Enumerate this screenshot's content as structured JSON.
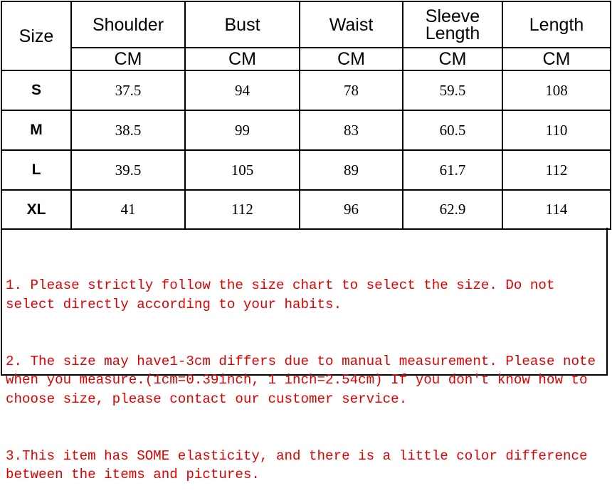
{
  "table": {
    "size_header": "Size",
    "columns": [
      {
        "label": "Shoulder",
        "unit": "CM"
      },
      {
        "label": "Bust",
        "unit": "CM"
      },
      {
        "label": "Waist",
        "unit": "CM"
      },
      {
        "label": "Sleeve Length",
        "unit": "CM"
      },
      {
        "label": "Length",
        "unit": "CM"
      }
    ],
    "rows": [
      {
        "size": "S",
        "values": [
          "37.5",
          "94",
          "78",
          "59.5",
          "108"
        ]
      },
      {
        "size": "M",
        "values": [
          "38.5",
          "99",
          "83",
          "60.5",
          "110"
        ]
      },
      {
        "size": "L",
        "values": [
          "39.5",
          "105",
          "89",
          "61.7",
          "112"
        ]
      },
      {
        "size": "XL",
        "values": [
          "41",
          "112",
          "96",
          "62.9",
          "114"
        ]
      }
    ]
  },
  "notes": [
    "1. Please strictly follow the size chart to select the size. Do not select directly according to your habits.",
    "2. The size may have1-3cm differs due to manual measurement. Please note when you measure.(1cm=0.39inch, 1 inch=2.54cm) If you don't know how to choose size, please contact our customer service.",
    "3.This item has SOME elasticity, and there is a little color difference between the items and pictures."
  ],
  "colors": {
    "notes_text": "#e00000",
    "border": "#000000"
  }
}
